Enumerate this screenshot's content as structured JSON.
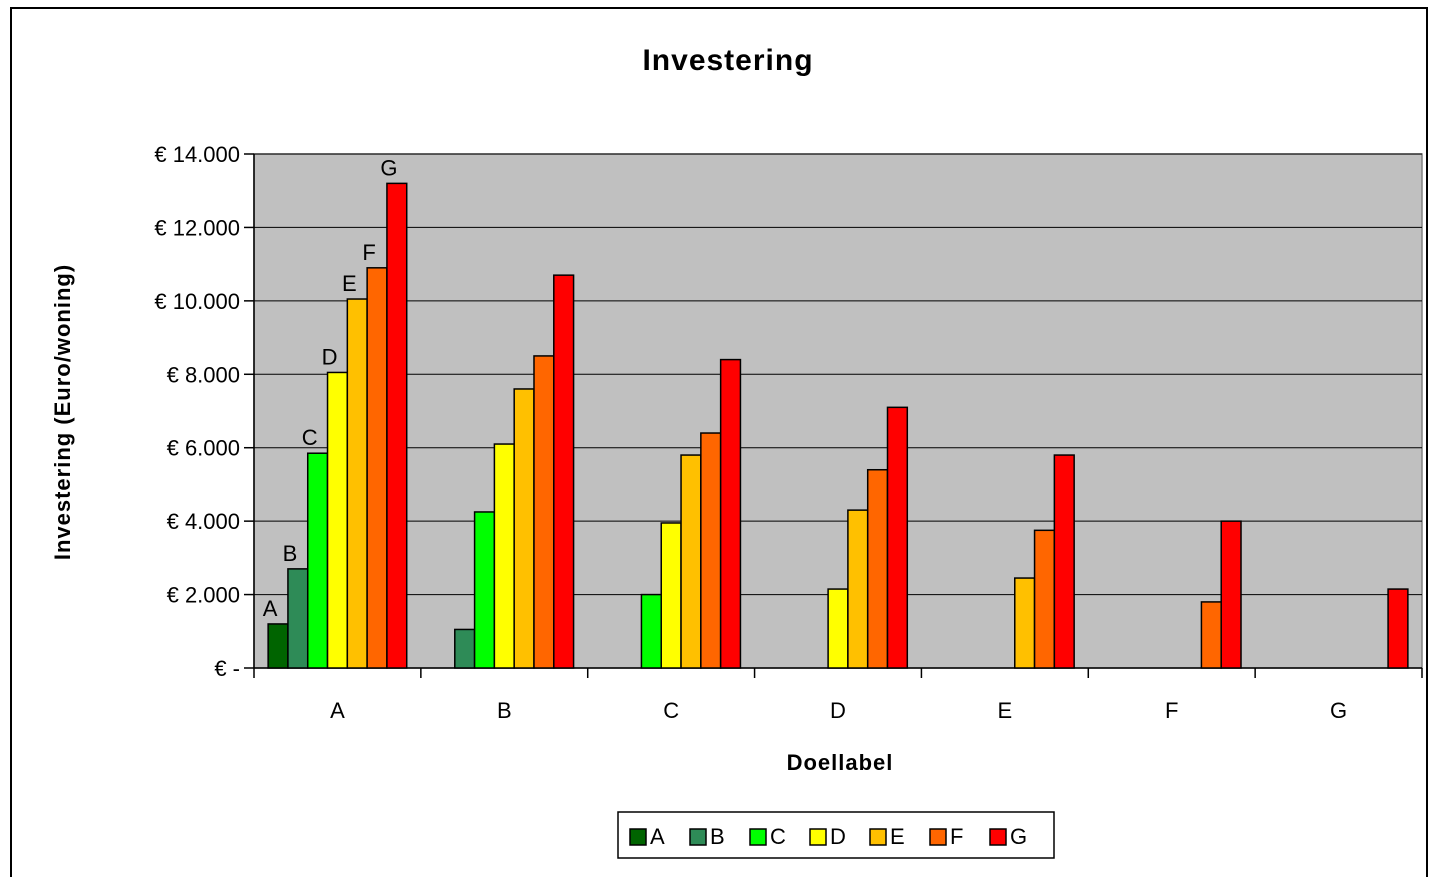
{
  "chart_data": {
    "type": "bar",
    "title": "Investering",
    "xlabel": "Doellabel",
    "ylabel": "Investering (Euro/woning)",
    "categories": [
      "A",
      "B",
      "C",
      "D",
      "E",
      "F",
      "G"
    ],
    "ylim": [
      0,
      14000
    ],
    "yticks": [
      0,
      2000,
      4000,
      6000,
      8000,
      10000,
      12000,
      14000
    ],
    "ytick_labels": [
      "€ -",
      "€ 2.000",
      "€ 4.000",
      "€ 6.000",
      "€ 8.000",
      "€ 10.000",
      "€ 12.000",
      "€ 14.000"
    ],
    "grid": true,
    "legend_position": "bottom",
    "plot_background": "#c0c0c0",
    "series": [
      {
        "name": "A",
        "color": "#006400",
        "values": [
          1200,
          null,
          null,
          null,
          null,
          null,
          null
        ]
      },
      {
        "name": "B",
        "color": "#2e8b57",
        "values": [
          2700,
          1050,
          null,
          null,
          null,
          null,
          null
        ]
      },
      {
        "name": "C",
        "color": "#00ff00",
        "values": [
          5850,
          4250,
          2000,
          null,
          null,
          null,
          null
        ]
      },
      {
        "name": "D",
        "color": "#ffff00",
        "values": [
          8050,
          6100,
          3950,
          2150,
          null,
          null,
          null
        ]
      },
      {
        "name": "E",
        "color": "#ffc000",
        "values": [
          10050,
          7600,
          5800,
          4300,
          2450,
          null,
          null
        ]
      },
      {
        "name": "F",
        "color": "#ff6600",
        "values": [
          10900,
          8500,
          6400,
          5400,
          3750,
          1800,
          null
        ]
      },
      {
        "name": "G",
        "color": "#ff0000",
        "values": [
          13200,
          10700,
          8400,
          7100,
          5800,
          4000,
          2150
        ]
      }
    ],
    "annotations": [
      {
        "category": "A",
        "series": "A",
        "text": "A"
      },
      {
        "category": "A",
        "series": "B",
        "text": "B"
      },
      {
        "category": "A",
        "series": "C",
        "text": "C"
      },
      {
        "category": "A",
        "series": "D",
        "text": "D"
      },
      {
        "category": "A",
        "series": "E",
        "text": "E"
      },
      {
        "category": "A",
        "series": "F",
        "text": "F"
      },
      {
        "category": "A",
        "series": "G",
        "text": "G"
      }
    ]
  }
}
